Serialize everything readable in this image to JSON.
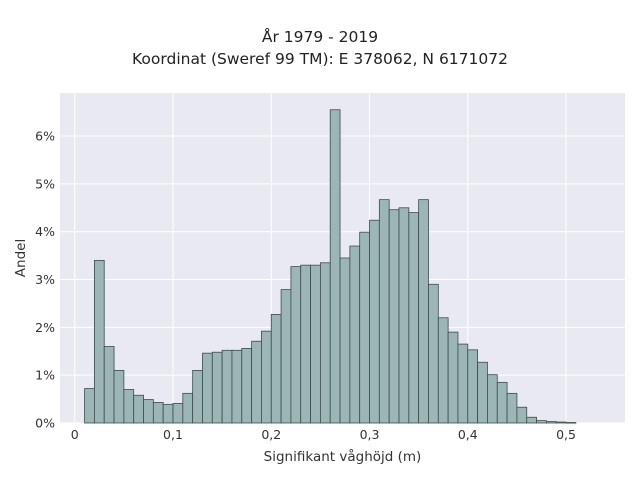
{
  "chart_data": {
    "type": "bar",
    "title": "År 1979 - 2019",
    "subtitle": "Koordinat (Sweref 99 TM): E 378062, N 6171072",
    "xlabel": "Signifikant våghöjd (m)",
    "ylabel": "Andel",
    "xlim": [
      -0.015,
      0.56
    ],
    "ylim": [
      0,
      0.069
    ],
    "bin_width": 0.01,
    "bin_starts": [
      0.01,
      0.02,
      0.03,
      0.04,
      0.05,
      0.06,
      0.07,
      0.08,
      0.09,
      0.1,
      0.11,
      0.12,
      0.13,
      0.14,
      0.15,
      0.16,
      0.17,
      0.18,
      0.19,
      0.2,
      0.21,
      0.22,
      0.23,
      0.24,
      0.25,
      0.26,
      0.27,
      0.28,
      0.29,
      0.3,
      0.31,
      0.32,
      0.33,
      0.34,
      0.35,
      0.36,
      0.37,
      0.38,
      0.39,
      0.4,
      0.41,
      0.42,
      0.43,
      0.44,
      0.45,
      0.46,
      0.47,
      0.48,
      0.49,
      0.5,
      0.51,
      0.52
    ],
    "values": [
      0.0072,
      0.034,
      0.016,
      0.011,
      0.007,
      0.0058,
      0.0049,
      0.0043,
      0.0039,
      0.0041,
      0.0062,
      0.011,
      0.0146,
      0.0148,
      0.0152,
      0.0152,
      0.0156,
      0.0171,
      0.0192,
      0.0227,
      0.0279,
      0.0327,
      0.033,
      0.033,
      0.0335,
      0.0655,
      0.0345,
      0.037,
      0.0399,
      0.0424,
      0.0467,
      0.0446,
      0.045,
      0.044,
      0.0467,
      0.029,
      0.022,
      0.019,
      0.0165,
      0.0153,
      0.0127,
      0.0101,
      0.0085,
      0.0062,
      0.0033,
      0.0012,
      0.0005,
      0.0003,
      0.0002,
      0.0001,
      0.0,
      0.0
    ],
    "xticks": [
      0,
      0.1,
      0.2,
      0.3,
      0.4,
      0.5
    ],
    "xtick_labels": [
      "0",
      "0,1",
      "0,2",
      "0,3",
      "0,4",
      "0,5"
    ],
    "yticks": [
      0,
      0.01,
      0.02,
      0.03,
      0.04,
      0.05,
      0.06
    ],
    "ytick_labels": [
      "0%",
      "1%",
      "2%",
      "3%",
      "4%",
      "5%",
      "6%"
    ],
    "grid": true,
    "colors": {
      "bar_fill": "#9cb6b6",
      "bar_edge": "#3d4b4b",
      "plot_bg": "#e9e9f1",
      "grid": "#ffffff"
    }
  }
}
